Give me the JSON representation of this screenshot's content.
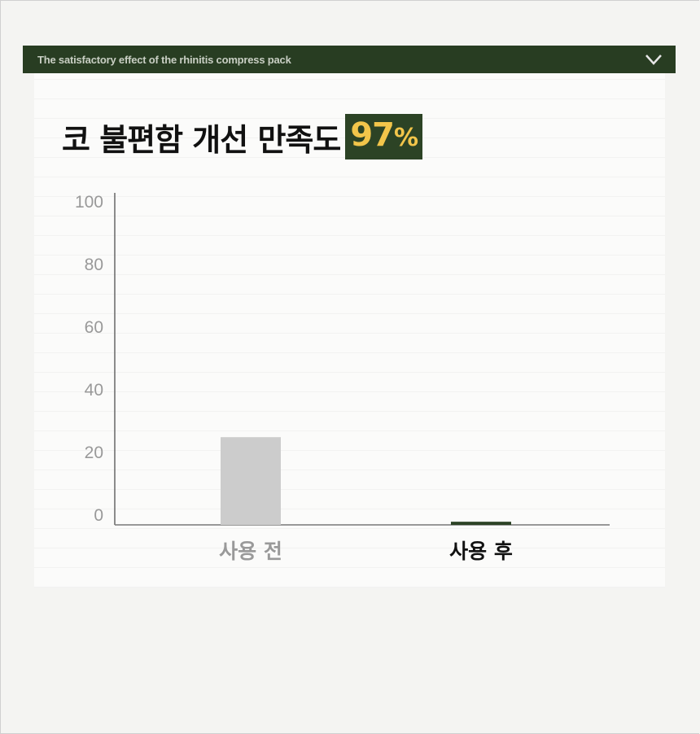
{
  "header": {
    "title": "The satisfactory effect of the rhinitis compress pack",
    "icon": "chevron-down-icon"
  },
  "headline": {
    "text": "코 불편함 개선 만족도",
    "highlight_value": "97",
    "highlight_unit": "%"
  },
  "colors": {
    "header_bg": "#283d22",
    "highlight_bg": "#2c4325",
    "highlight_text": "#f2c54a",
    "bar_before": "#cccccc",
    "bar_after": "#2c4325"
  },
  "chart_data": {
    "type": "bar",
    "categories": [
      "사용 전",
      "사용 후"
    ],
    "values": [
      28,
      1
    ],
    "ylim": [
      0,
      100
    ],
    "yticks": [
      "0",
      "20",
      "40",
      "60",
      "80",
      "100"
    ],
    "grid": false,
    "xlabel": "",
    "ylabel": ""
  }
}
